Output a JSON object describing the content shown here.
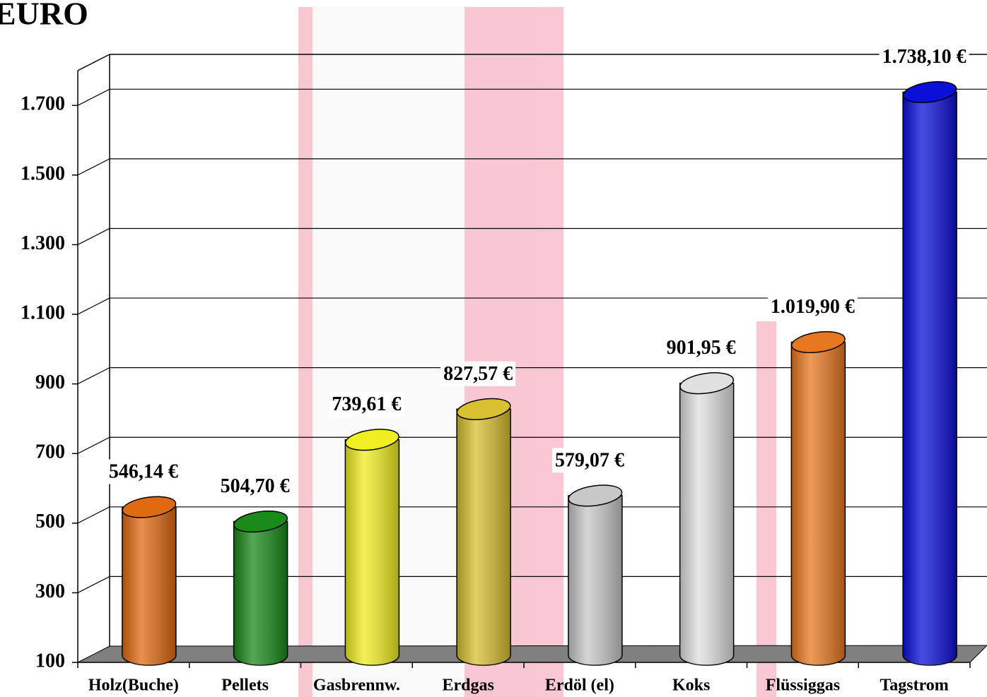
{
  "chart_data": {
    "type": "bar",
    "title": "EURO",
    "categories": [
      "Holz(Buche)",
      "Pellets",
      "Gasbrennw.",
      "Erdgas",
      "Erdöl (el)",
      "Koks",
      "Flüssiggas",
      "Tagstrom"
    ],
    "values": [
      546.14,
      504.7,
      739.61,
      827.57,
      579.07,
      901.95,
      1019.9,
      1738.1
    ],
    "value_labels": [
      "546,14 €",
      "504,70 €",
      "739,61 €",
      "827,57 €",
      "579,07 €",
      "901,95 €",
      "1.019,90 €",
      "1.738,10 €"
    ],
    "colors": [
      "#e06a10",
      "#1a8a1a",
      "#f0f020",
      "#d8c030",
      "#c8c8c8",
      "#e0e0e0",
      "#e87820",
      "#0a10d8"
    ],
    "ylim": [
      100,
      1800
    ],
    "yticks": [
      100,
      300,
      500,
      700,
      900,
      {
        "value": 1100,
        "label": "1.100"
      },
      {
        "value": 1300,
        "label": "1.300"
      },
      {
        "value": 1500,
        "label": "1.500"
      },
      {
        "value": 1700,
        "label": "1.700"
      }
    ],
    "grid": true
  }
}
